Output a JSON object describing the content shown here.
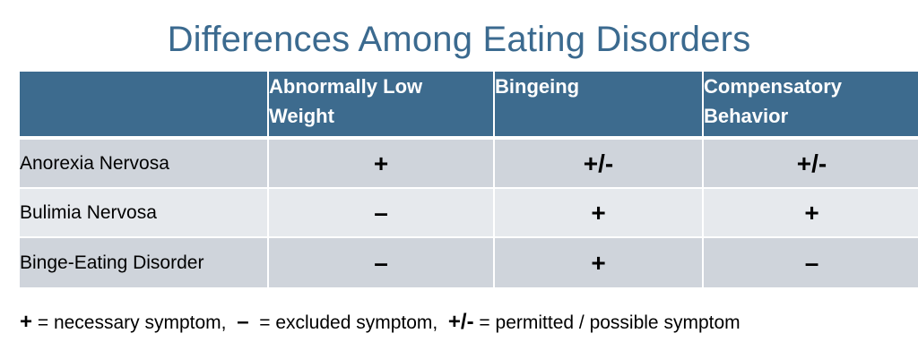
{
  "title": "Differences Among Eating Disorders",
  "colors": {
    "title": "#3b6a8f",
    "header_bg": "#3d6b8e",
    "row_dark": "#cfd4db",
    "row_light": "#e6e9ed"
  },
  "table": {
    "headers": [
      "",
      "Abnormally Low Weight",
      "Bingeing",
      "Compensatory Behavior"
    ],
    "rows": [
      {
        "label": "Anorexia Nervosa",
        "cells": [
          "+",
          "+/-",
          "+/-"
        ]
      },
      {
        "label": "Bulimia Nervosa",
        "cells": [
          "–",
          "+",
          "+"
        ]
      },
      {
        "label": "Binge-Eating Disorder",
        "cells": [
          "–",
          "+",
          "–"
        ]
      }
    ]
  },
  "legend": {
    "plus_symbol": "+",
    "plus_text": " = necessary symptom,",
    "minus_symbol": "–",
    "minus_text": " = excluded symptom,",
    "pm_symbol": "+/-",
    "pm_text": " = permitted / possible symptom"
  }
}
